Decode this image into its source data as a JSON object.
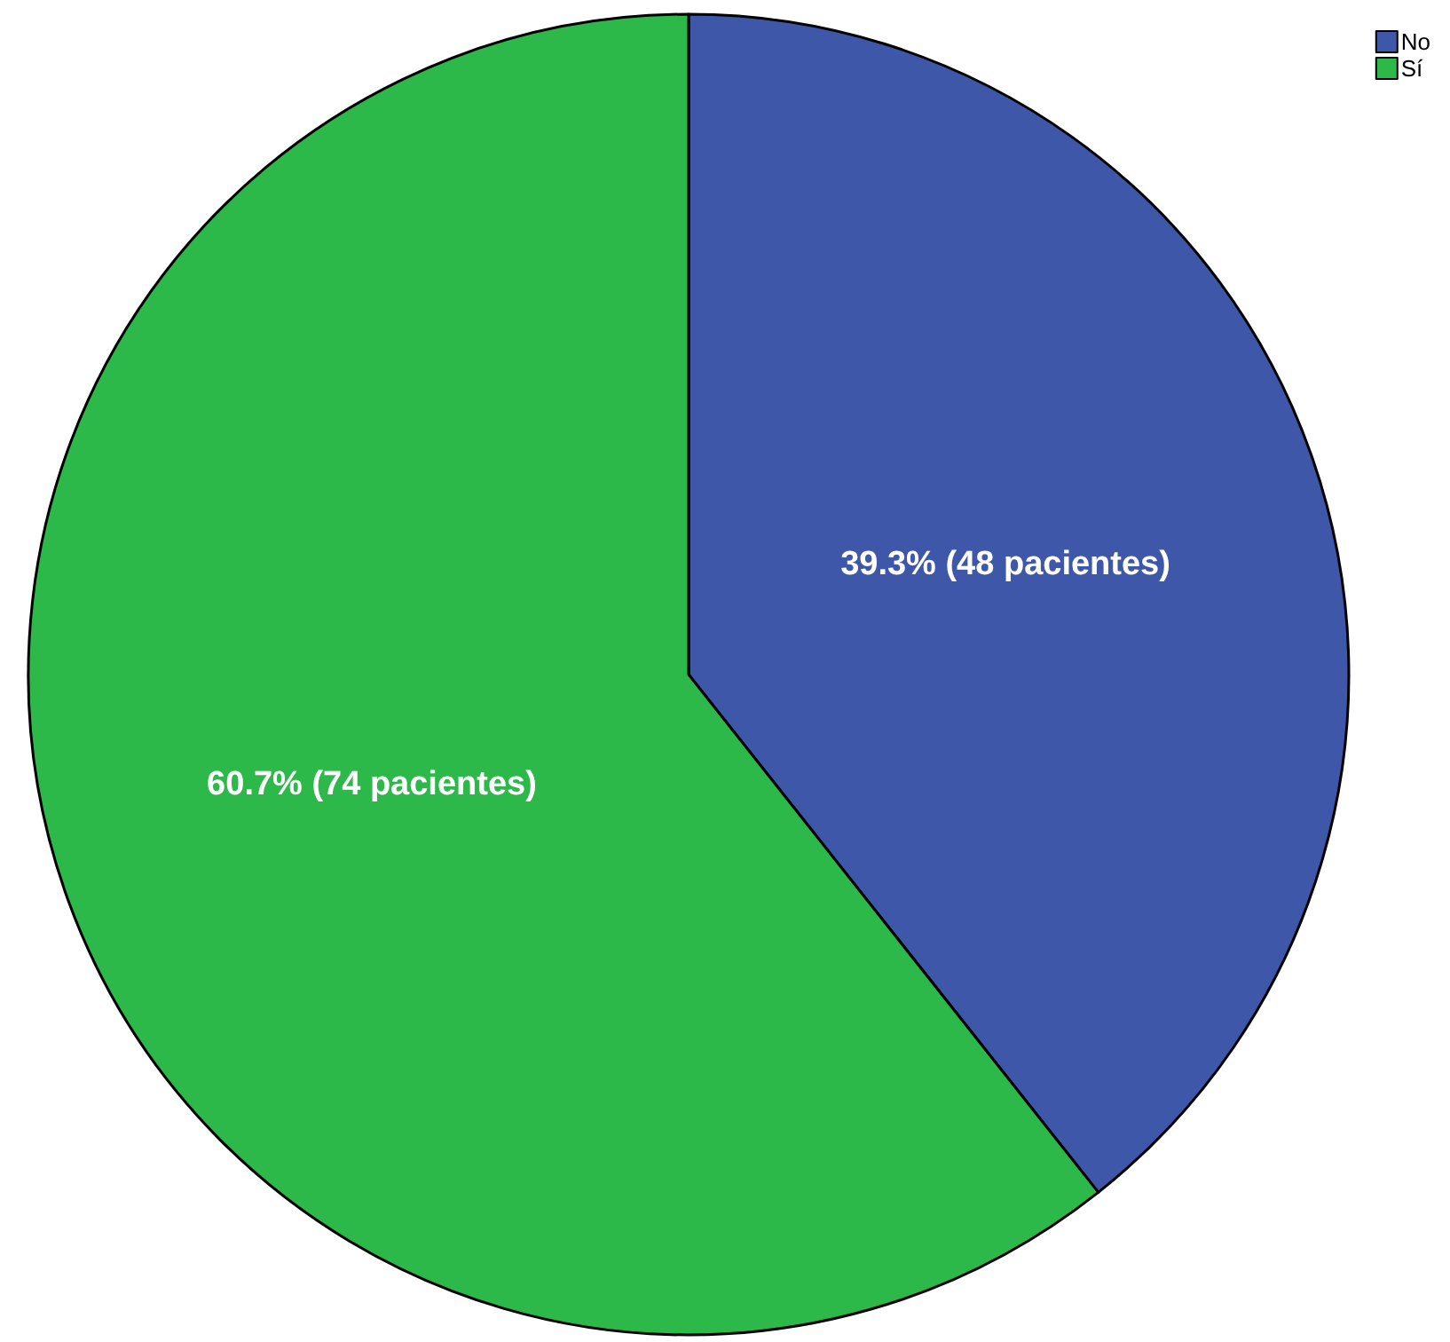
{
  "chart_data": {
    "type": "pie",
    "categories": [
      "No",
      "Sí"
    ],
    "values": [
      48,
      74
    ],
    "colors": [
      "#3f57a8",
      "#2db84a"
    ],
    "value_labels": [
      "39.3% (48 pacientes)",
      "60.7% (74 pacientes)"
    ],
    "legend": "top right"
  }
}
